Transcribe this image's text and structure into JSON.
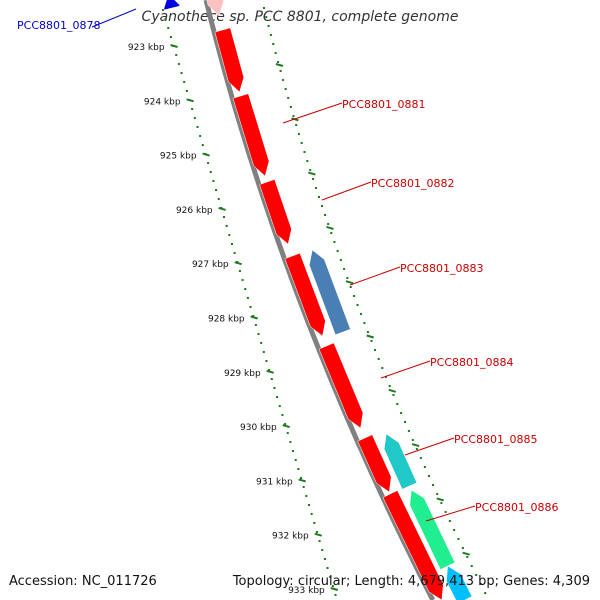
{
  "title": "Cyanothece sp. PCC 8801, complete genome",
  "footer": {
    "accession_label": "Accession:",
    "accession": "NC_011726",
    "topology_label": "Topology:",
    "topology": "circular",
    "length_label": "Length:",
    "length": "4,679,413 bp",
    "genes_label": "Genes:",
    "genes": "4,309"
  },
  "scale": {
    "ticks": [
      "923 kbp",
      "924 kbp",
      "925 kbp",
      "926 kbp",
      "927 kbp",
      "928 kbp",
      "929 kbp",
      "930 kbp",
      "931 kbp",
      "932 kbp",
      "933 kbp"
    ],
    "tick_color": "#1e7a1e"
  },
  "genes": [
    {
      "label": "PCC8801_0878",
      "strand": "reverse",
      "color": "#0000dd",
      "label_color": "#0000cc"
    },
    {
      "label": "",
      "strand": "forward",
      "color": "#ffc0c0"
    },
    {
      "label": "",
      "strand": "forward",
      "color": "#ff0000"
    },
    {
      "label": "PCC8801_0881",
      "strand": "forward",
      "color": "#ff0000",
      "label_color": "#cc0000"
    },
    {
      "label": "PCC8801_0882",
      "strand": "forward",
      "color": "#ff0000",
      "label_color": "#cc0000"
    },
    {
      "label": "",
      "strand": "forward",
      "color": "#ff0000"
    },
    {
      "label": "PCC8801_0883",
      "strand": "reverse",
      "color": "#4a7fb5",
      "label_color": "#cc0000"
    },
    {
      "label": "PCC8801_0884",
      "strand": "forward",
      "color": "#ff0000",
      "label_color": "#cc0000"
    },
    {
      "label": "",
      "strand": "forward",
      "color": "#ff0000"
    },
    {
      "label": "PCC8801_0885",
      "strand": "reverse",
      "color": "#20c8c8",
      "label_color": "#cc0000"
    },
    {
      "label": "PCC8801_0886",
      "strand": "reverse",
      "color": "#20ee90",
      "label_color": "#cc0000"
    },
    {
      "label": "",
      "strand": "forward",
      "color": "#ff0000"
    },
    {
      "label": "",
      "strand": "reverse",
      "color": "#00bfff"
    }
  ],
  "backbone_color": "#808080",
  "leader_color": "#cc0000"
}
